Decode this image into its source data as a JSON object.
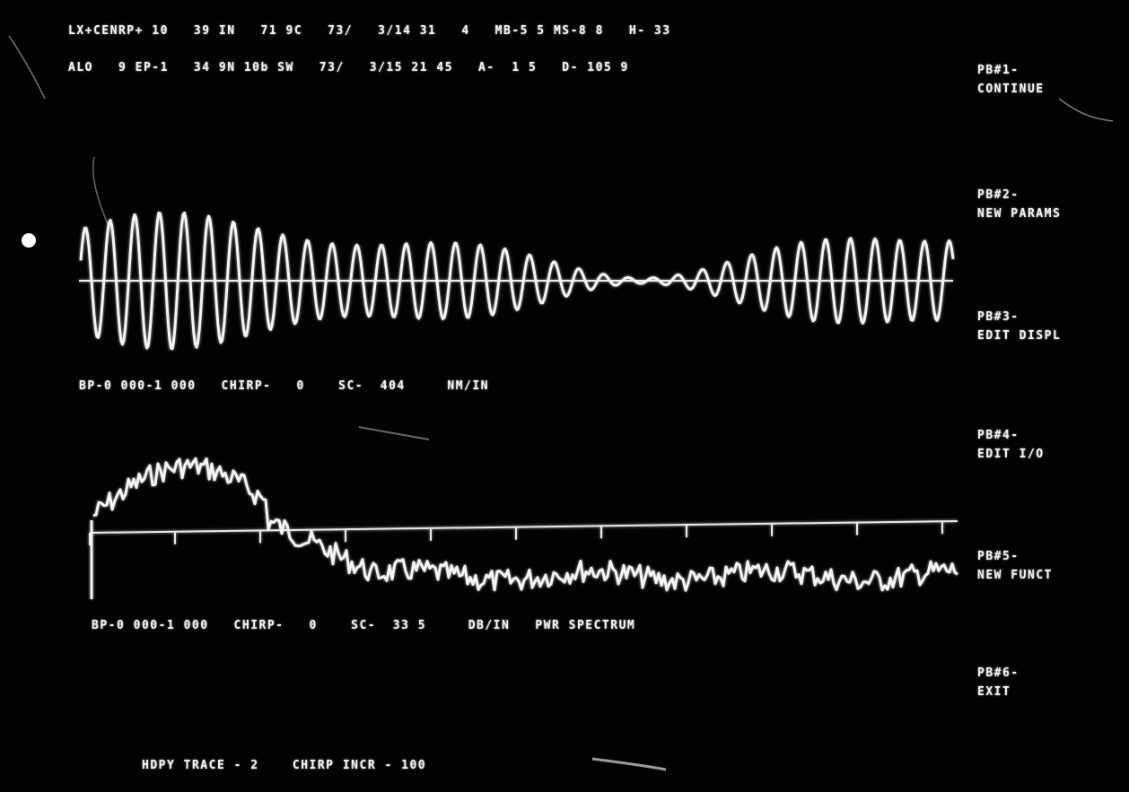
{
  "header": {
    "line1": "LX+CENRP+ 10   39 IN   71 9C   73/   3/14 31   4   MB-5 5 MS-8 8   H- 33",
    "line2": "ALO   9 EP-1   34 9N 10b SW   73/   3/15 21 45   A-  1 5   D- 105 9"
  },
  "softkeys": [
    {
      "code": "PB#1-",
      "label": "CONTINUE"
    },
    {
      "code": "PB#2-",
      "label": "NEW PARAMS"
    },
    {
      "code": "PB#3-",
      "label": "EDIT DISPL"
    },
    {
      "code": "PB#4-",
      "label": "EDIT I/O"
    },
    {
      "code": "PB#5-",
      "label": "NEW FUNCT"
    },
    {
      "code": "PB#6-",
      "label": "EXIT"
    }
  ],
  "waveform_panel": {
    "status": "BP-0 000-1 000   CHIRP-   0    SC-  404     NM/IN"
  },
  "spectrum_panel": {
    "status": "BP-0 000-1 000   CHIRP-   0    SC-  33 5     DB/IN   PWR SPECTRUM"
  },
  "footer": {
    "status": "HDPY TRACE - 2    CHIRP INCR - 100"
  },
  "colors": {
    "background": "#030303",
    "phosphor": "#f2f2f2"
  }
}
